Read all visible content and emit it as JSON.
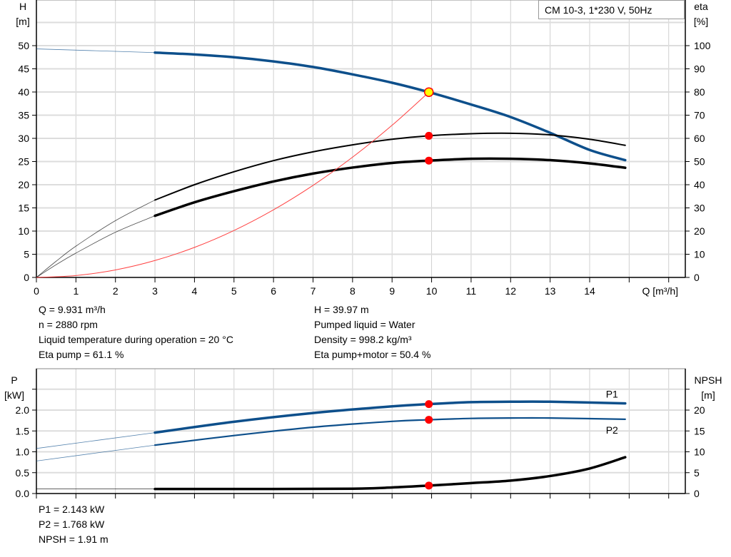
{
  "title": "CM 10-3, 1*230 V, 50Hz",
  "colors": {
    "head": "#0d4f8b",
    "efficiency": "#000000",
    "system": "#ff4040",
    "duty_point": "#ff0000",
    "duty_point_head": "#ffff00",
    "grid": "#d0d0d0"
  },
  "info_top_left": [
    "Q = 9.931 m³/h",
    "n = 2880 rpm",
    "Liquid temperature during operation = 20 °C",
    "Eta pump = 61.1 %"
  ],
  "info_top_right": [
    "H = 39.97 m",
    "Pumped liquid = Water",
    "Density = 998.2 kg/m³",
    "Eta pump+motor = 50.4 %"
  ],
  "info_bottom": [
    "P1 = 2.143 kW",
    "P2 = 1.768 kW",
    "NPSH = 1.91 m"
  ],
  "chart_data": [
    {
      "type": "line",
      "xlabel": "Q [m³/h]",
      "ylabel": "H\n[m]",
      "y2label": "eta\n[%]",
      "xlim": [
        0,
        16
      ],
      "ylim": [
        0,
        60
      ],
      "y2lim": [
        0,
        120
      ],
      "xticks": [
        0,
        1,
        2,
        3,
        4,
        5,
        6,
        7,
        8,
        9,
        10,
        11,
        12,
        13,
        14
      ],
      "yticks": [
        0,
        5,
        10,
        15,
        20,
        25,
        30,
        35,
        40,
        45,
        50
      ],
      "y2ticks": [
        0,
        10,
        20,
        30,
        40,
        50,
        60,
        70,
        80,
        90,
        100
      ],
      "grid": true,
      "series": [
        {
          "id": "head",
          "axis": "y",
          "x": [
            0,
            3,
            4,
            5,
            6,
            7,
            8,
            9,
            9.931,
            11,
            12,
            13,
            14,
            14.9
          ],
          "values": [
            49.3,
            48.5,
            48.1,
            47.5,
            46.6,
            45.4,
            43.8,
            42.0,
            39.97,
            37.3,
            34.6,
            31.2,
            27.5,
            25.3
          ]
        },
        {
          "id": "eta_pump",
          "axis": "y2",
          "x": [
            0,
            0.5,
            1,
            2,
            3,
            4,
            5,
            6,
            7,
            8,
            9,
            9.931,
            11,
            12,
            13,
            14,
            14.9
          ],
          "values": [
            0,
            7,
            13.5,
            24.5,
            33.4,
            40,
            45.6,
            50.4,
            54.2,
            57.2,
            59.6,
            61.1,
            62,
            62.2,
            61.5,
            59.6,
            57
          ]
        },
        {
          "id": "eta_total",
          "axis": "y2",
          "x": [
            0,
            0.5,
            1,
            2,
            3,
            4,
            5,
            6,
            7,
            8,
            9,
            9.931,
            11,
            12,
            13,
            14,
            14.9
          ],
          "values": [
            0,
            5.5,
            10.5,
            19.5,
            26.6,
            32.4,
            37.2,
            41.4,
            44.8,
            47.4,
            49.4,
            50.4,
            51.2,
            51.2,
            50.6,
            49.2,
            47.3
          ]
        },
        {
          "id": "system",
          "axis": "y",
          "x": [
            0,
            1,
            2,
            3,
            4,
            5,
            6,
            7,
            8,
            9,
            9.931,
            10
          ],
          "values": [
            0,
            0.41,
            1.62,
            3.65,
            6.48,
            10.13,
            14.59,
            19.86,
            25.94,
            32.82,
            39.97,
            40.5
          ]
        }
      ],
      "duty_points": [
        {
          "axis": "y",
          "x": 9.931,
          "y": 39.97
        },
        {
          "axis": "y2",
          "x": 9.931,
          "y": 61.1
        },
        {
          "axis": "y2",
          "x": 9.931,
          "y": 50.4
        }
      ]
    },
    {
      "type": "line",
      "ylabel": "P\n[kW]",
      "y2label": "NPSH\n[m]",
      "xlim": [
        0,
        16
      ],
      "ylim": [
        0,
        3
      ],
      "y2lim": [
        0,
        30
      ],
      "yticks": [
        0.0,
        0.5,
        1.0,
        1.5,
        2.0,
        2.5
      ],
      "yticklabels": [
        "0.0",
        "0.5",
        "1.0",
        "1.5",
        "2.0",
        ""
      ],
      "y2ticks": [
        0,
        5,
        10,
        15,
        20,
        25
      ],
      "y2ticklabels": [
        "0",
        "5",
        "10",
        "15",
        "20",
        ""
      ],
      "grid": true,
      "series": [
        {
          "id": "P1",
          "name": "P1",
          "axis": "y",
          "x": [
            0,
            3,
            5,
            7,
            9,
            9.931,
            11,
            12,
            13,
            14.9
          ],
          "values": [
            1.08,
            1.46,
            1.72,
            1.93,
            2.09,
            2.143,
            2.19,
            2.2,
            2.2,
            2.16
          ]
        },
        {
          "id": "P2",
          "name": "P2",
          "axis": "y",
          "x": [
            0,
            3,
            5,
            7,
            9,
            9.931,
            11,
            12,
            13,
            14.9
          ],
          "values": [
            0.78,
            1.16,
            1.39,
            1.59,
            1.73,
            1.768,
            1.8,
            1.81,
            1.81,
            1.78
          ]
        },
        {
          "id": "NPSH",
          "axis": "y2",
          "x": [
            0,
            3,
            6,
            8,
            9,
            9.931,
            11,
            12,
            13,
            14,
            14.9
          ],
          "values": [
            1.1,
            1.1,
            1.1,
            1.15,
            1.45,
            1.91,
            2.5,
            3.1,
            4.2,
            6.0,
            8.7
          ]
        }
      ],
      "duty_points": [
        {
          "axis": "y",
          "x": 9.931,
          "y": 2.143
        },
        {
          "axis": "y",
          "x": 9.931,
          "y": 1.768
        },
        {
          "axis": "y2",
          "x": 9.931,
          "y": 1.91
        }
      ]
    }
  ]
}
